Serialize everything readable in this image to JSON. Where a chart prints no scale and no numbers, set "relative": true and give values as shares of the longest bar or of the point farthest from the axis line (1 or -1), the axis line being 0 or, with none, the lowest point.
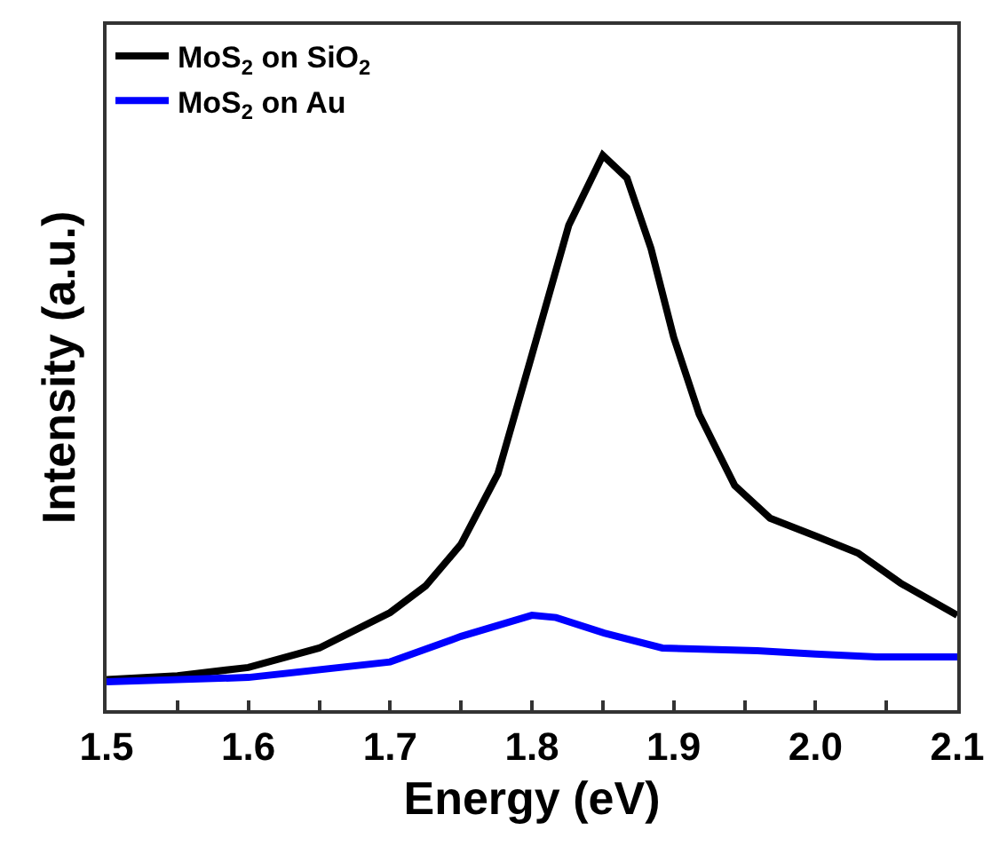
{
  "chart_data": {
    "type": "line",
    "xlabel": "Energy (eV)",
    "ylabel": "Intensity (a.u.)",
    "relative": true,
    "xlim": [
      1.5,
      2.1
    ],
    "xticks": [
      1.5,
      {
        "value": 1.55,
        "label": null
      },
      1.6,
      {
        "value": 1.65,
        "label": null
      },
      1.7,
      {
        "value": 1.75,
        "label": null
      },
      1.8,
      {
        "value": 1.85,
        "label": null
      },
      1.9,
      {
        "value": 1.95,
        "label": null
      },
      {
        "value": 2.0,
        "label": "2.0"
      },
      {
        "value": 2.05,
        "label": null
      },
      2.1
    ],
    "grid": false,
    "legend": "top left",
    "marker": "none",
    "line_style": "solid",
    "series": [
      {
        "name": "MoS$_{2}$ on SiO$_{2}$",
        "color": "#000000",
        "x": [
          1.5,
          1.55,
          1.6,
          1.65,
          1.7,
          1.725,
          1.75,
          1.776,
          1.8,
          1.826,
          1.85,
          1.867,
          1.884,
          1.9,
          1.918,
          1.943,
          1.968,
          2.0,
          2.03,
          2.06,
          2.1
        ],
        "values": [
          0.055,
          0.062,
          0.077,
          0.112,
          0.176,
          0.224,
          0.299,
          0.426,
          0.64,
          0.874,
          1.0,
          0.959,
          0.832,
          0.672,
          0.533,
          0.405,
          0.346,
          0.314,
          0.283,
          0.229,
          0.171
        ]
      },
      {
        "name": "MoS$_{2}$ on Au",
        "color": "#0000ff",
        "x": [
          1.5,
          1.6,
          1.7,
          1.75,
          1.8,
          1.817,
          1.851,
          1.892,
          1.959,
          2.0,
          2.043,
          2.1
        ],
        "values": [
          0.051,
          0.059,
          0.087,
          0.133,
          0.171,
          0.167,
          0.139,
          0.112,
          0.107,
          0.101,
          0.096,
          0.096
        ]
      }
    ]
  }
}
